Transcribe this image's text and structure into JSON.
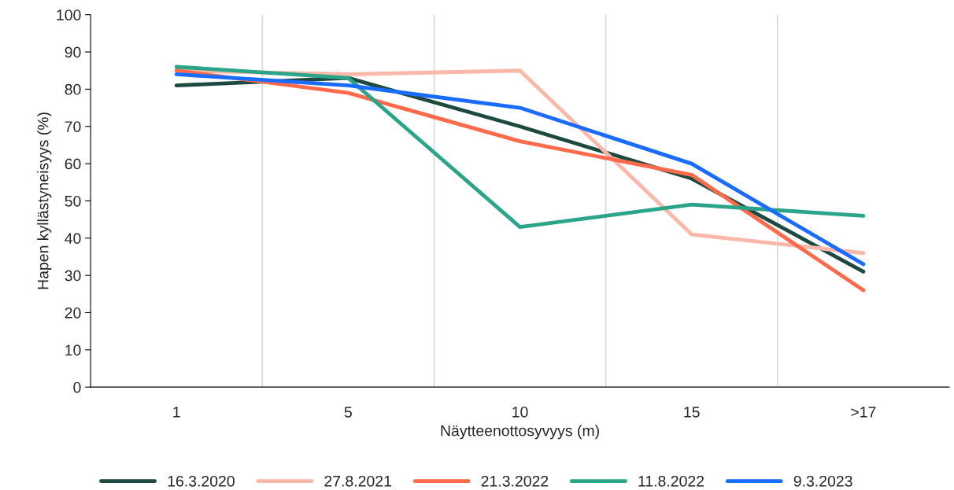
{
  "chart_data": {
    "type": "line",
    "xlabel": "Näytteenottosyvyys (m)",
    "ylabel": "Hapen kyllästyneisyys (%)",
    "categories": [
      "1",
      "5",
      "10",
      "15",
      ">17"
    ],
    "ylim": [
      0,
      100
    ],
    "yticks": [
      0,
      10,
      20,
      30,
      40,
      50,
      60,
      70,
      80,
      90,
      100
    ],
    "grid": "x",
    "legend": "bottom",
    "marker": "none",
    "line_style": "solid",
    "series": [
      {
        "name": "16.3.2020",
        "color": "#1d4a40",
        "values": [
          81,
          83,
          70,
          56,
          31
        ]
      },
      {
        "name": "27.8.2021",
        "color": "#fbb8a8",
        "values": [
          85,
          84,
          85,
          41,
          36
        ]
      },
      {
        "name": "21.3.2022",
        "color": "#ff6b4a",
        "values": [
          85,
          79,
          66,
          57,
          26
        ]
      },
      {
        "name": "11.8.2022",
        "color": "#2aa58a",
        "values": [
          86,
          83,
          43,
          49,
          46
        ]
      },
      {
        "name": "9.3.2023",
        "color": "#1a6bff",
        "values": [
          84,
          81,
          75,
          60,
          33
        ]
      }
    ]
  }
}
